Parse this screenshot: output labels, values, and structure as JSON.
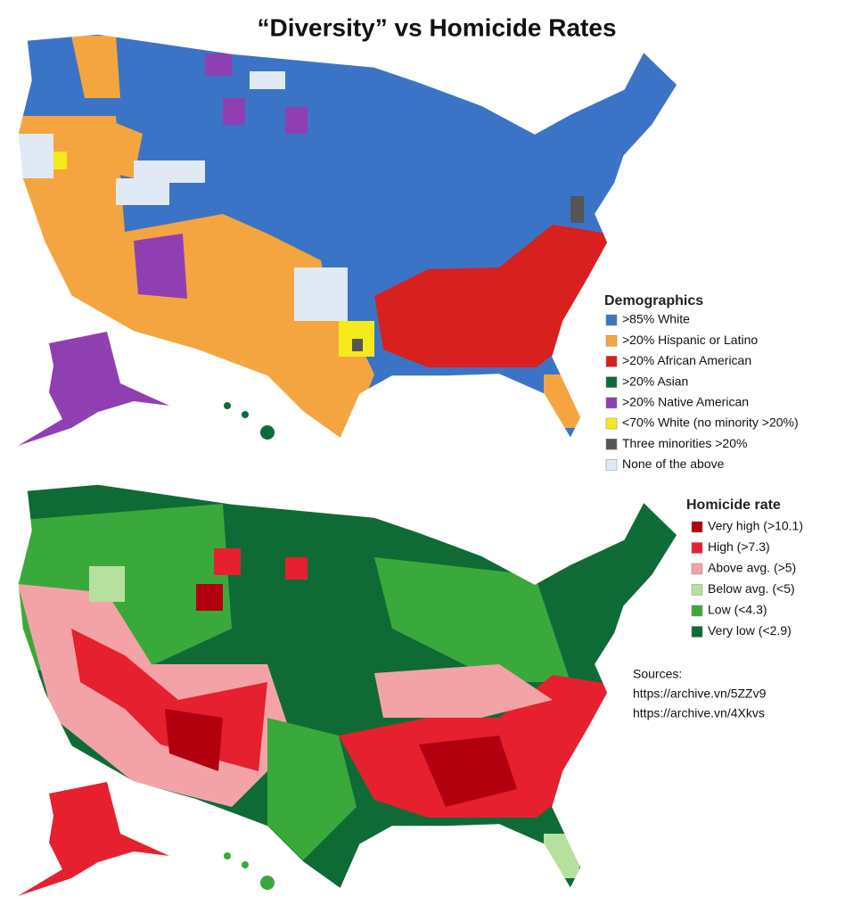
{
  "title": "“Diversity” vs Homicide Rates",
  "demographics": {
    "title": "Demographics",
    "items": [
      {
        "label": ">85% White",
        "color": "#3b74c6"
      },
      {
        "label": ">20% Hispanic or Latino",
        "color": "#f4a53f"
      },
      {
        "label": ">20% African American",
        "color": "#d8201f"
      },
      {
        "label": ">20% Asian",
        "color": "#0d6b3b"
      },
      {
        "label": ">20% Native American",
        "color": "#8f3fb2"
      },
      {
        "label": "<70% White (no minority >20%)",
        "color": "#f5ea1c"
      },
      {
        "label": "Three minorities >20%",
        "color": "#555555"
      },
      {
        "label": "None of the above",
        "color": "#dfeaf4"
      }
    ]
  },
  "homicide": {
    "title": "Homicide rate",
    "items": [
      {
        "label": "Very high (>10.1)",
        "color": "#b3000f"
      },
      {
        "label": "High (>7.3)",
        "color": "#e6202e"
      },
      {
        "label": "Above avg. (>5)",
        "color": "#f3a3a7"
      },
      {
        "label": "Below avg. (<5)",
        "color": "#b6e09d"
      },
      {
        "label": "Low (<4.3)",
        "color": "#3aa93b"
      },
      {
        "label": "Very low (<2.9)",
        "color": "#0f6b36"
      }
    ]
  },
  "sources": {
    "title": "Sources:",
    "links": [
      "https://archive.vn/5ZZv9",
      "https://archive.vn/4Xkvs"
    ]
  }
}
